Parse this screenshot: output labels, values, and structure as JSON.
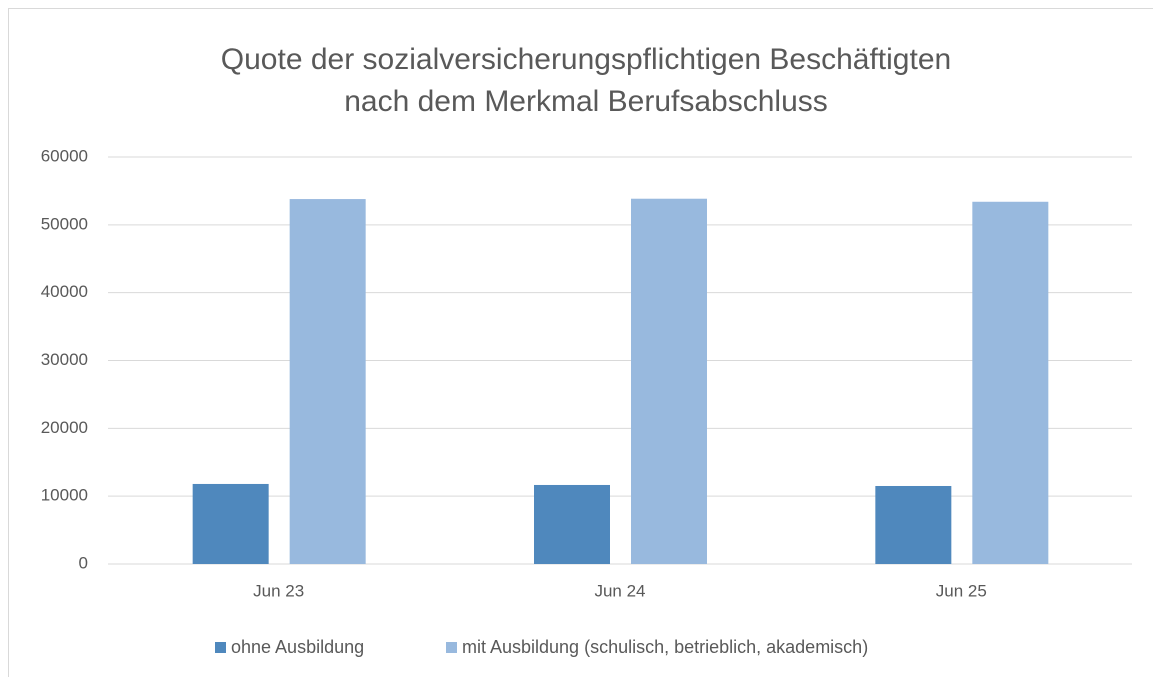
{
  "chart_data": {
    "type": "bar",
    "title": [
      "Quote der sozialversicherungspflichtigen Beschäftigten",
      "nach dem Merkmal Berufsabschluss"
    ],
    "categories": [
      "Jun 23",
      "Jun 24",
      "Jun 25"
    ],
    "series": [
      {
        "name": "ohne Ausbildung",
        "color": "#4f88bd",
        "values": [
          11800,
          11650,
          11500
        ]
      },
      {
        "name": "mit Ausbildung (schulisch, betrieblich, akademisch)",
        "color": "#98b9de",
        "values": [
          53800,
          53850,
          53400
        ]
      }
    ],
    "ylim": [
      0,
      60000
    ],
    "yticks": [
      0,
      10000,
      20000,
      30000,
      40000,
      50000,
      60000
    ],
    "grid": true,
    "legend": "bottom"
  }
}
